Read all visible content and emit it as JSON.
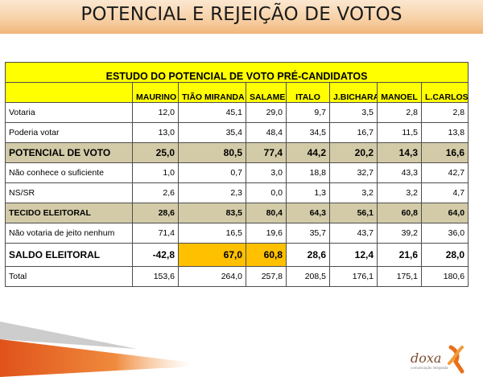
{
  "title": "POTENCIAL E REJEIÇÃO DE VOTOS",
  "table": {
    "heading": "ESTUDO DO POTENCIAL DE VOTO PRÉ-CANDIDATOS",
    "columns": [
      "MAURINO",
      "TIÃO MIRANDA",
      "SALAME",
      "ITALO",
      "J.BICHARA",
      "MANOEL",
      "L.CARLOS"
    ],
    "rows": [
      {
        "label": "Votaria",
        "values": [
          "12,0",
          "45,1",
          "29,0",
          "9,7",
          "3,5",
          "2,8",
          "2,8"
        ]
      },
      {
        "label": "Poderia votar",
        "values": [
          "13,0",
          "35,4",
          "48,4",
          "34,5",
          "16,7",
          "11,5",
          "13,8"
        ]
      },
      {
        "label": "POTENCIAL DE VOTO",
        "values": [
          "25,0",
          "80,5",
          "77,4",
          "44,2",
          "20,2",
          "14,3",
          "16,6"
        ]
      },
      {
        "label": "Não conhece o suficiente",
        "values": [
          "1,0",
          "0,7",
          "3,0",
          "18,8",
          "32,7",
          "43,3",
          "42,7"
        ]
      },
      {
        "label": "NS/SR",
        "values": [
          "2,6",
          "2,3",
          "0,0",
          "1,3",
          "3,2",
          "3,2",
          "4,7"
        ]
      },
      {
        "label": "TECIDO ELEITORAL",
        "values": [
          "28,6",
          "83,5",
          "80,4",
          "64,3",
          "56,1",
          "60,8",
          "64,0"
        ]
      },
      {
        "label": "Não votaria de jeito nenhum",
        "values": [
          "71,4",
          "16,5",
          "19,6",
          "35,7",
          "43,7",
          "39,2",
          "36,0"
        ]
      },
      {
        "label": "SALDO ELEITORAL",
        "values": [
          "-42,8",
          "67,0",
          "60,8",
          "28,6",
          "12,4",
          "21,6",
          "28,0"
        ]
      },
      {
        "label": "Total",
        "values": [
          "153,6",
          "264,0",
          "257,8",
          "208,5",
          "176,1",
          "175,1",
          "180,6"
        ]
      }
    ]
  },
  "colors": {
    "header_yellow": "#ffff00",
    "band_tan": "#d3cba8",
    "highlight_orange": "#ffc000",
    "accent_orange": "#e8701a"
  },
  "logo": {
    "word": "doxa",
    "tagline": "comunicação integrada"
  }
}
